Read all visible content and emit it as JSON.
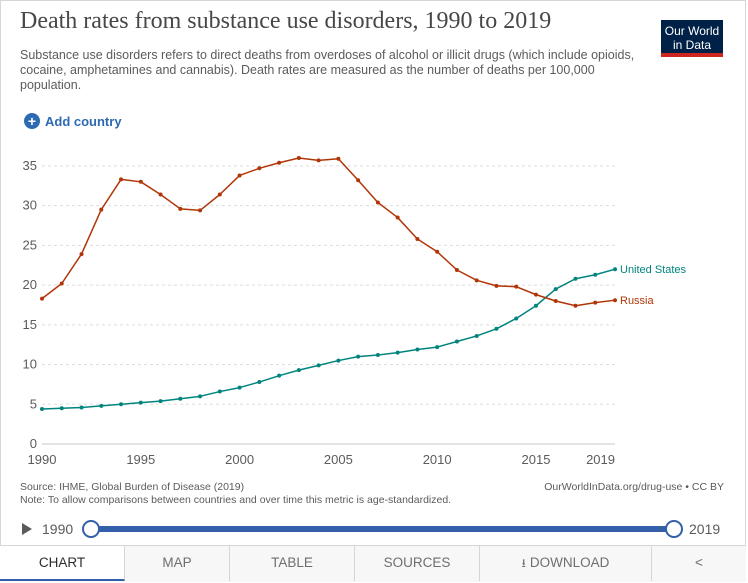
{
  "header": {
    "title": "Death rates from substance use disorders, 1990 to 2019",
    "subtitle": "Substance use disorders refers to direct deaths from overdoses of alcohol or illicit drugs (which include opioids, cocaine, amphetamines and cannabis). Death rates are measured as the number of deaths per 100,000 population.",
    "logo_line1": "Our World",
    "logo_line2": "in Data"
  },
  "controls": {
    "add_country": "Add country"
  },
  "footer": {
    "source": "Source: IHME, Global Burden of Disease (2019)",
    "note": "Note: To allow comparisons between countries and over time this metric is age-standardized.",
    "credit": "OurWorldInData.org/drug-use • CC BY"
  },
  "timeline": {
    "start": "1990",
    "end": "2019"
  },
  "tabs": [
    "CHART",
    "MAP",
    "TABLE",
    "SOURCES",
    "DOWNLOAD"
  ],
  "colors": {
    "russia": "#b13507",
    "united_states": "#00847e",
    "accent": "#3360a9"
  },
  "chart_data": {
    "type": "line",
    "x": [
      1990,
      1991,
      1992,
      1993,
      1994,
      1995,
      1996,
      1997,
      1998,
      1999,
      2000,
      2001,
      2002,
      2003,
      2004,
      2005,
      2006,
      2007,
      2008,
      2009,
      2010,
      2011,
      2012,
      2013,
      2014,
      2015,
      2016,
      2017,
      2018,
      2019
    ],
    "xticks": [
      1990,
      1995,
      2000,
      2005,
      2010,
      2015,
      2019
    ],
    "yticks": [
      0,
      5,
      10,
      15,
      20,
      25,
      30,
      35
    ],
    "ylim": [
      0,
      36.5
    ],
    "xlim": [
      1990,
      2019
    ],
    "grid": "horizontal dashed",
    "legend": "line-end labels",
    "series": [
      {
        "name": "United States",
        "values": [
          4.4,
          4.5,
          4.6,
          4.8,
          5.0,
          5.2,
          5.4,
          5.7,
          6.0,
          6.6,
          7.1,
          7.8,
          8.6,
          9.3,
          9.9,
          10.5,
          11.0,
          11.2,
          11.5,
          11.9,
          12.2,
          12.9,
          13.6,
          14.5,
          15.8,
          17.4,
          19.5,
          20.8,
          21.3,
          22.0
        ]
      },
      {
        "name": "Russia",
        "values": [
          18.3,
          20.2,
          23.9,
          29.5,
          33.3,
          33.0,
          31.4,
          29.6,
          29.4,
          31.4,
          33.8,
          34.7,
          35.4,
          36.0,
          35.7,
          35.9,
          33.2,
          30.4,
          28.5,
          25.8,
          24.2,
          21.9,
          20.6,
          19.9,
          19.8,
          18.8,
          18.0,
          17.4,
          17.8,
          18.1
        ]
      }
    ]
  }
}
